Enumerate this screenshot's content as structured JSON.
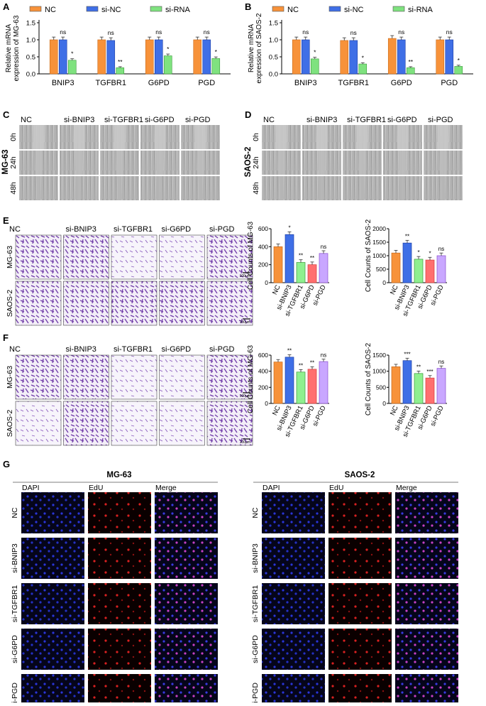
{
  "colors": {
    "nc": "#f7923a",
    "sinc": "#3f6fe6",
    "sirna": "#7fe27f",
    "sitg": "#ff6f6f",
    "sipgd": "#c9a7ff",
    "stain": "#6f3aa8",
    "sirna_bar": "#8ff08f"
  },
  "panel_letters": [
    "A",
    "B",
    "C",
    "D",
    "E",
    "F",
    "G"
  ],
  "legend": [
    "NC",
    "si-NC",
    "si-RNA"
  ],
  "panelA": {
    "ylabel_lines": [
      "Relative mRNA",
      "expression of MG-63"
    ],
    "yticks": [
      "0.0",
      "0.5",
      "1.0",
      "1.5"
    ],
    "sig": [
      [
        "ns",
        "*"
      ],
      [
        "ns",
        "**"
      ],
      [
        "ns",
        "*"
      ],
      [
        "ns",
        "*"
      ]
    ]
  },
  "panelB": {
    "ylabel_lines": [
      "Relative mRNA",
      "expression of SAOS-2"
    ],
    "yticks": [
      "0.0",
      "0.5",
      "1.0",
      "1.5"
    ],
    "sig": [
      [
        "ns",
        "*"
      ],
      [
        "ns",
        "*"
      ],
      [
        "ns",
        "**"
      ],
      [
        "ns",
        "*"
      ]
    ]
  },
  "panelCD": {
    "c_cols": [
      "NC",
      "si-BNIP3",
      "si-TGFBR1",
      "si-G6PD",
      "si-PGD"
    ],
    "d_cols": [
      "NC",
      "si-BNIP3",
      "si-TGFBR1",
      "si-G6PD",
      "si-PGD"
    ],
    "rows": [
      "0h",
      "24h",
      "48h"
    ],
    "c_side": "MG-63",
    "d_side": "SAOS-2"
  },
  "panelEF": {
    "cols": [
      "NC",
      "si-BNIP3",
      "si-TGFBR1",
      "si-G6PD",
      "si-PGD"
    ],
    "rows": [
      "MG-63",
      "SAOS-2"
    ],
    "scale": "100μm"
  },
  "chartE1": {
    "ylabel": "Cell Counts of MG-63",
    "yticks": [
      "0",
      "200",
      "400",
      "600"
    ],
    "sig": [
      "*",
      "**",
      "**",
      "ns"
    ]
  },
  "chartE2": {
    "ylabel": "Cell Counts of SAOS-2",
    "yticks": [
      "0",
      "500",
      "1000",
      "1500",
      "2000"
    ],
    "sig": [
      "**",
      "*",
      "*",
      "ns"
    ]
  },
  "chartF1": {
    "ylabel": "Cell Counts of MG-63",
    "yticks": [
      "0",
      "200",
      "400",
      "600"
    ],
    "sig": [
      "**",
      "**",
      "**",
      "ns"
    ]
  },
  "chartF2": {
    "ylabel": "Cell Counts of SAOS-2",
    "yticks": [
      "0",
      "500",
      "1000",
      "1500"
    ],
    "sig": [
      "***",
      "**",
      "***",
      "ns"
    ]
  },
  "panelG": {
    "left_title": "MG-63",
    "right_title": "SAOS-2",
    "cols": [
      "DAPI",
      "EdU",
      "Merge"
    ],
    "rows": [
      "NC",
      "si-BNIP3",
      "si-TGFBR1",
      "si-G6PD",
      "si-PGD"
    ],
    "scale": "100μm"
  },
  "chart_data": [
    {
      "type": "bar",
      "ylabel": "Relative mRNA expression of MG-63",
      "categories": [
        "BNIP3",
        "TGFBR1",
        "G6PD",
        "PGD"
      ],
      "ylim": [
        0,
        1.5
      ],
      "series": [
        {
          "name": "NC",
          "values": [
            1.0,
            1.0,
            1.0,
            1.0
          ]
        },
        {
          "name": "si-NC",
          "values": [
            1.0,
            0.98,
            1.0,
            1.0
          ]
        },
        {
          "name": "si-RNA",
          "values": [
            0.4,
            0.18,
            0.53,
            0.45
          ]
        }
      ]
    },
    {
      "type": "bar",
      "ylabel": "Relative mRNA expression of SAOS-2",
      "categories": [
        "BNIP3",
        "TGFBR1",
        "G6PD",
        "PGD"
      ],
      "ylim": [
        0,
        1.5
      ],
      "series": [
        {
          "name": "NC",
          "values": [
            1.0,
            0.98,
            1.04,
            1.0
          ]
        },
        {
          "name": "si-NC",
          "values": [
            1.0,
            0.98,
            1.0,
            1.0
          ]
        },
        {
          "name": "si-RNA",
          "values": [
            0.44,
            0.29,
            0.18,
            0.22
          ]
        }
      ]
    },
    {
      "type": "bar",
      "ylabel": "Cell Counts of MG-63",
      "categories": [
        "NC",
        "si-BNIP3",
        "si-TGFBR1",
        "si-G6PD",
        "si-PGD"
      ],
      "values": [
        400,
        535,
        225,
        200,
        325
      ],
      "ylim": [
        0,
        600
      ]
    },
    {
      "type": "bar",
      "ylabel": "Cell Counts of SAOS-2",
      "categories": [
        "NC",
        "si-BNIP3",
        "si-TGFBR1",
        "si-G6PD",
        "si-PGD"
      ],
      "values": [
        1100,
        1470,
        870,
        840,
        1000
      ],
      "ylim": [
        0,
        2000
      ]
    },
    {
      "type": "bar",
      "ylabel": "Cell Counts of MG-63",
      "categories": [
        "NC",
        "si-BNIP3",
        "si-TGFBR1",
        "si-G6PD",
        "si-PGD"
      ],
      "values": [
        515,
        575,
        390,
        425,
        520
      ],
      "ylim": [
        0,
        600
      ]
    },
    {
      "type": "bar",
      "ylabel": "Cell Counts of SAOS-2",
      "categories": [
        "NC",
        "si-BNIP3",
        "si-TGFBR1",
        "si-G6PD",
        "si-PGD"
      ],
      "values": [
        1140,
        1330,
        930,
        790,
        1090
      ],
      "ylim": [
        0,
        1500
      ]
    }
  ]
}
